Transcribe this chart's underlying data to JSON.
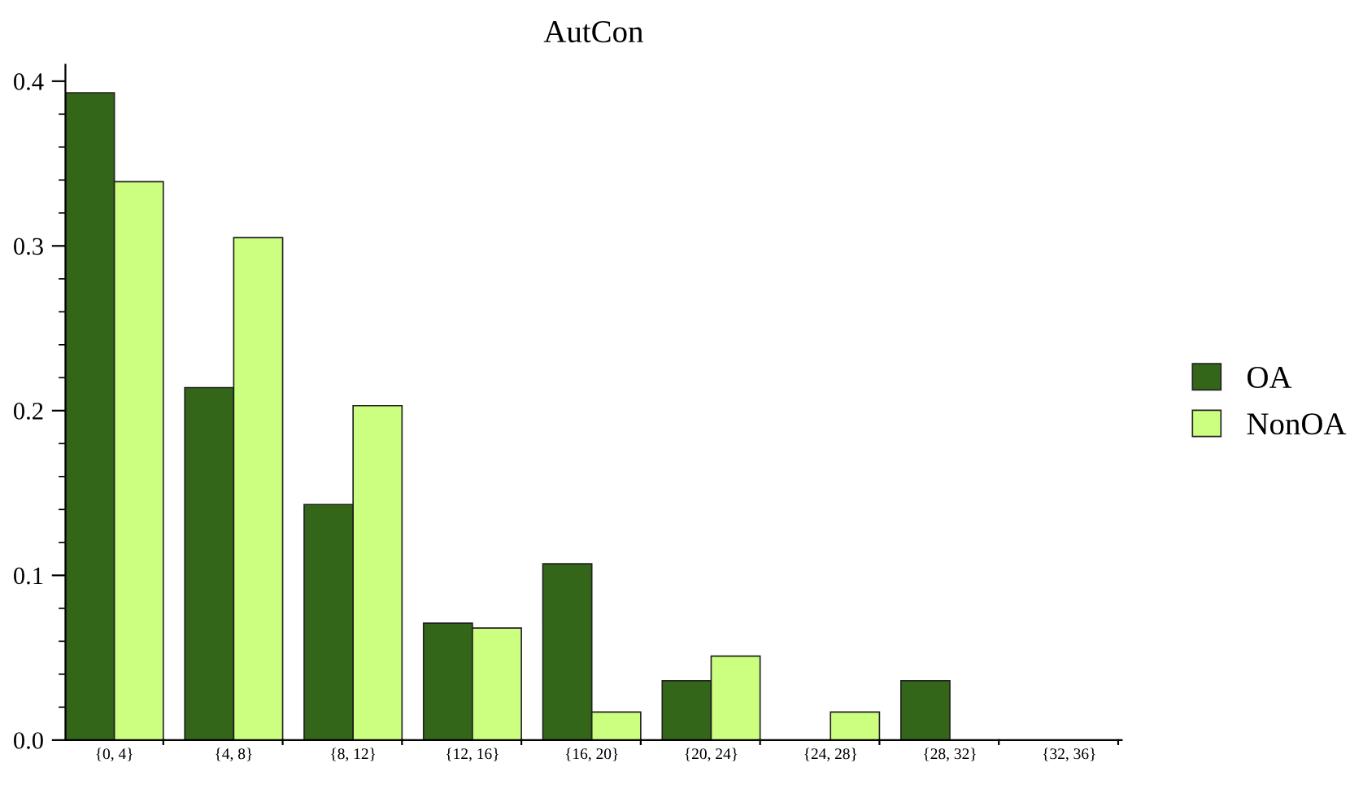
{
  "chart_data": {
    "type": "bar",
    "title": "AutCon",
    "categories": [
      "{0, 4}",
      "{4, 8}",
      "{8, 12}",
      "{12, 16}",
      "{16, 20}",
      "{20, 24}",
      "{24, 28}",
      "{28, 32}",
      "{32, 36}"
    ],
    "series": [
      {
        "name": "OA",
        "color": "#336619",
        "values": [
          0.393,
          0.214,
          0.143,
          0.071,
          0.107,
          0.036,
          0,
          0.036,
          0
        ]
      },
      {
        "name": "NonOA",
        "color": "#ccff80",
        "values": [
          0.339,
          0.305,
          0.203,
          0.068,
          0.017,
          0.051,
          0.017,
          0,
          0
        ]
      }
    ],
    "ylim": [
      0,
      0.41
    ],
    "yticks": [
      {
        "value": 0,
        "label": "0.0"
      },
      0.1,
      0.2,
      0.3,
      0.4
    ],
    "grid": false,
    "legend": "right"
  }
}
